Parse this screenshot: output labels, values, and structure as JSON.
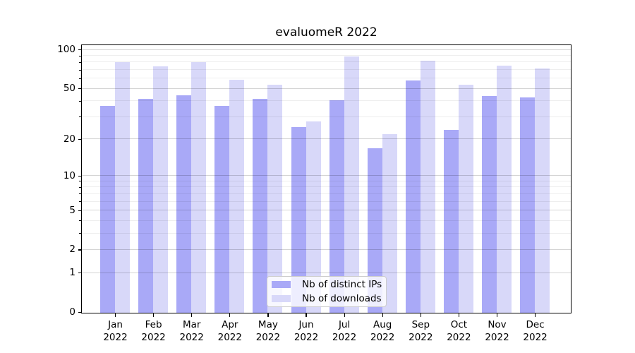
{
  "title": "evaluomeR 2022",
  "chart_data": {
    "type": "bar",
    "title": "evaluomeR 2022",
    "categories": [
      "Jan",
      "Feb",
      "Mar",
      "Apr",
      "May",
      "Jun",
      "Jul",
      "Aug",
      "Sep",
      "Oct",
      "Nov",
      "Dec"
    ],
    "category_year": "2022",
    "series": [
      {
        "name": "Nb of distinct IPs",
        "color": "#a9a9f7",
        "values": [
          37,
          42,
          45,
          37,
          42,
          25,
          41,
          17,
          58,
          24,
          44,
          43
        ]
      },
      {
        "name": "Nb of downloads",
        "color": "#d8d8f9",
        "values": [
          81,
          75,
          81,
          59,
          54,
          28,
          89,
          22,
          83,
          54,
          76,
          72
        ]
      }
    ],
    "yscale": "log1p",
    "ylim": [
      0,
      108
    ],
    "yticks": [
      0,
      1,
      2,
      5,
      10,
      20,
      50,
      100
    ],
    "yticks_minor": [
      3,
      4,
      6,
      7,
      8,
      9,
      30,
      40,
      60,
      70,
      80,
      90
    ],
    "grid": true,
    "legend_position": "lower center",
    "xlabel": "",
    "ylabel": ""
  }
}
